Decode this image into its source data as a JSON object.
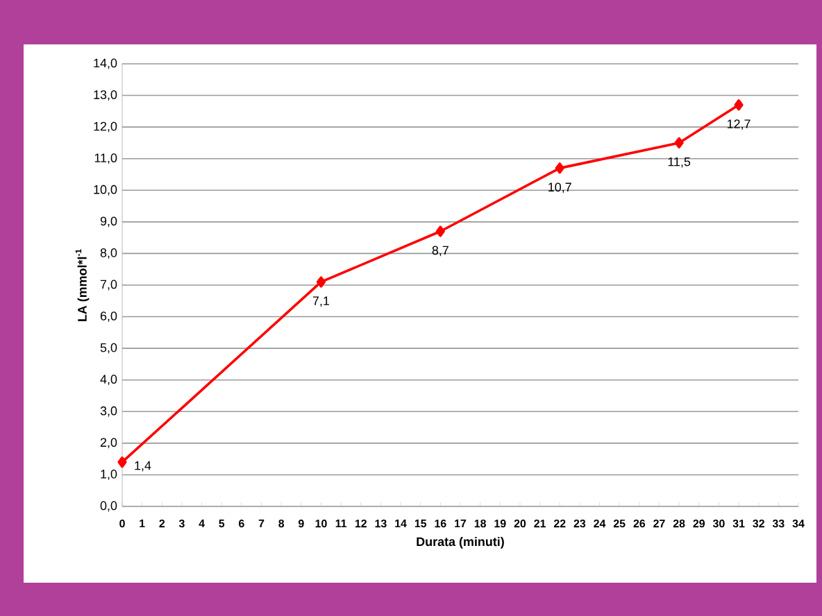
{
  "chart_data": {
    "type": "line",
    "xlabel": "Durata  (minuti)",
    "ylabel": "LA (mmol*l$^{-1}$",
    "x": [
      0,
      10,
      16,
      22,
      28,
      31
    ],
    "series": [
      {
        "color": "#ff0000",
        "values": [
          1.4,
          7.1,
          8.7,
          10.7,
          11.5,
          12.7
        ],
        "value_labels": [
          "1,4",
          "7,1",
          "8,7",
          "10,7",
          "11,5",
          "12,7"
        ]
      }
    ],
    "xlim": [
      0,
      34
    ],
    "xticks": [
      0,
      1,
      2,
      3,
      4,
      5,
      6,
      7,
      8,
      9,
      10,
      11,
      12,
      13,
      14,
      15,
      16,
      17,
      18,
      19,
      20,
      21,
      22,
      23,
      24,
      25,
      26,
      27,
      28,
      29,
      30,
      31,
      32,
      33,
      34
    ],
    "ylim": [
      0,
      14
    ],
    "yticks": [
      {
        "value": 0,
        "label": "0,0"
      },
      {
        "value": 1,
        "label": "1,0"
      },
      {
        "value": 2,
        "label": "2,0"
      },
      {
        "value": 3,
        "label": "3,0"
      },
      {
        "value": 4,
        "label": "4,0"
      },
      {
        "value": 5,
        "label": "5,0"
      },
      {
        "value": 6,
        "label": "6,0"
      },
      {
        "value": 7,
        "label": "7,0"
      },
      {
        "value": 8,
        "label": "8,0"
      },
      {
        "value": 9,
        "label": "9,0"
      },
      {
        "value": 10,
        "label": "10,0"
      },
      {
        "value": 11,
        "label": "11,0"
      },
      {
        "value": 12,
        "label": "12,0"
      },
      {
        "value": 13,
        "label": "13,0"
      },
      {
        "value": 14,
        "label": "14,0"
      }
    ],
    "grid": "y",
    "marker": "diamond",
    "line_style": "solid"
  }
}
